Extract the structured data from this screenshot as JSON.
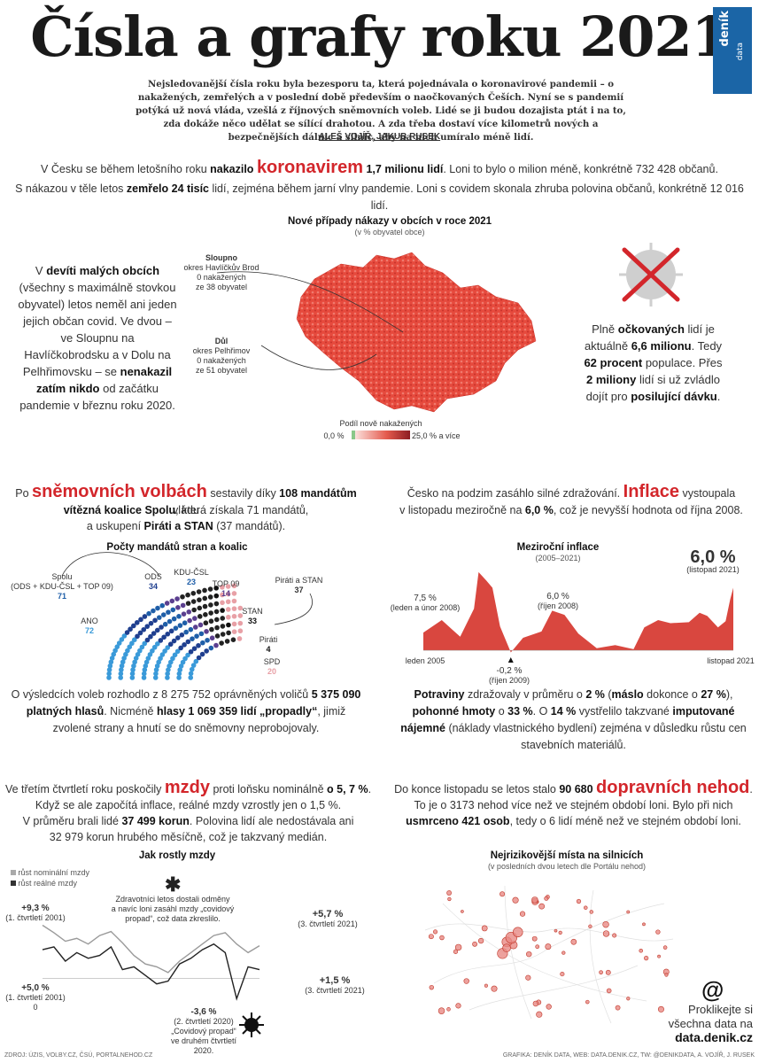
{
  "header": {
    "title": "Čísla a grafy roku 2021",
    "logo_main": "deník",
    "logo_sub": "data",
    "intro": "Nejsledovanější čísla roku byla bezesporu ta, která pojednávala o koronavirové pandemii – o nakažených, zemřelých a v poslední době především o naočkovaných Češích. Nyní se s pandemií potýká už nová vláda, vzešlá z říjnových sněmovních voleb. Lidé se ji budou dozajista ptát i na to, zda dokáže něco udělat se sílící drahotou. A zda třeba dostaví více kilometrů nových a bezpečnějších dálnic a silnic, aby na nich umíralo méně lidí.",
    "authors": "ALEŠ VOJÍŘ, JAKUB RUSEK"
  },
  "covid": {
    "l1a": "V Česku se během letošního roku ",
    "l1b": "nakazilo",
    "l1c": "koronavirem",
    "l1d": "1,7 milionu lidí",
    "l1e": ". Loni to bylo o milion méně, konkrétně 732 428 občanů.",
    "l2a": "S nákazou v těle letos ",
    "l2b": "zemřelo 24 tisíc",
    "l2c": " lidí, zejména během jarní vlny pandemie. Loni s covidem skonala zhruba polovina občanů, konkrétně 12 016 lidí.",
    "map_title": "Nové případy nákazy v obcích v roce 2021",
    "map_sub": "(v % obyvatel obce)",
    "ann1_name": "Sloupno",
    "ann1_text": "okres Havlíčkův Brod\n0 nakažených\nze 38 obyvatel",
    "ann2_name": "Důl",
    "ann2_text": "okres Pelhřimov\n0 nakažených\nze 51 obyvatel",
    "legend_title": "Podíl nově nakažených",
    "legend_min": "0,0 %",
    "legend_max": "25,0 % a více",
    "left_a": "V ",
    "left_b": "devíti malých obcích",
    "left_c": " (všechny s maximálně stovkou obyvatel) letos neměl ani jeden jejich občan covid. Ve dvou – ve Sloupnu na Havlíčkobrodsku a v Dolu na Pelhřimovsku – se ",
    "left_d": "nenakazil zatím nikdo",
    "left_e": " od začátku pandemie v březnu roku 2020.",
    "right_a": "Plně ",
    "right_b": "očkovaných",
    "right_c": " lidí je aktuálně ",
    "right_d": "6,6 milionu",
    "right_e": ". Tedy ",
    "right_f": "62 procent",
    "right_g": " populace. Přes ",
    "right_h": "2 miliony",
    "right_i": " lidí si už zvládlo dojít pro ",
    "right_j": "posilující dávku",
    "right_k": "."
  },
  "elections": {
    "l1a": "Po ",
    "l1b": "sněmovních volbách",
    "l1c": " sestavily díky ",
    "l1d": "108 mandátům",
    "l1e": " vládu",
    "l2a": "vítězná koalice Spolu",
    "l2b": ", která získala 71 mandátů,",
    "l3a": "a uskupení ",
    "l3b": "Piráti a STAN",
    "l3c": " (37 mandátů).",
    "chart_title": "Počty mandátů stran a koalic",
    "spolu_label": "Spolu",
    "spolu_sub": "(ODS + KDU-ČSL + TOP 09)",
    "spolu_value": "71",
    "pirstan_label": "Piráti a STAN",
    "pirstan_value": "37",
    "bottom_a": "O výsledcích voleb rozhodlo z 8 275 752 oprávněných voličů ",
    "bottom_b": "5 375 090 platných hlasů",
    "bottom_c": ". Nicméně ",
    "bottom_d": "hlasy 1 069 359 lidí „propadly“",
    "bottom_e": ", jimiž zvolené strany a hnutí se do sněmovny neprobojovaly."
  },
  "inflation": {
    "l1a": "Česko na podzim zasáhlo silné zdražování. ",
    "l1b": "Inflace",
    "l1c": " vystoupala",
    "l2a": "v listopadu meziročně na ",
    "l2b": "6,0 %",
    "l2c": ", což je nevyšší hodnota od října 2008.",
    "chart_title": "Meziroční inflace",
    "chart_sub": "(2005–2021)",
    "a1_val": "7,5 %",
    "a1_sub": "(leden a únor 2008)",
    "a2_val": "6,0 %",
    "a2_sub": "(říjen 2008)",
    "a3_val": "-0,2 %",
    "a3_sub": "(říjen 2009)",
    "a4_val": "6,0 %",
    "a4_sub": "(listopad 2021)",
    "x_start": "leden 2005",
    "x_end": "listopad 2021",
    "bottom_a": "Potraviny",
    "bottom_b": " zdražovaly v průměru o ",
    "bottom_c": "2 %",
    "bottom_d": " (",
    "bottom_e": "máslo",
    "bottom_f": " dokonce o ",
    "bottom_g": "27 %",
    "bottom_h": "), ",
    "bottom_i": "pohonné hmoty",
    "bottom_j": " o ",
    "bottom_k": "33 %",
    "bottom_l": ". O ",
    "bottom_m": "14 %",
    "bottom_n": " vystřelilo takzvané ",
    "bottom_o": "imputované nájemné",
    "bottom_p": " (náklady vlastnického bydlení) zejména v důsledku růstu cen stavebních materiálů."
  },
  "wages": {
    "l1a": "Ve třetím čtvrtletí roku poskočily ",
    "l1b": "mzdy",
    "l1c": " proti loňsku nominálně ",
    "l1d": "o 5, 7 %",
    "l1e": ".",
    "l2": "Když se ale započítá inflace, reálné mzdy vzrostly jen o 1,5 %.",
    "l3a": "V průměru brali lidé ",
    "l3b": "37 499 korun",
    "l3c": ". Polovina lidí ale nedostávala ani",
    "l4": "32 979 korun hrubého měsíčně, což je takzvaný medián.",
    "chart_title": "Jak rostly mzdy",
    "legend1": "růst nominální mzdy",
    "legend2": "růst reálné mzdy",
    "note_mark": "✱",
    "note": "Zdravotníci letos dostali odměny\na navíc loni zasáhl mzdy „covidový\npropad“, což data zkreslilo.",
    "a1_val": "+9,3 %",
    "a1_sub": "(1. čtvrtletí 2001)",
    "a2_val": "+5,0 %",
    "a2_sub": "(1. čtvrtletí 2001)",
    "zero": "0",
    "a3_val": "+5,7 %",
    "a3_sub": "(3. čtvrtletí 2021)",
    "a4_val": "+1,5 %",
    "a4_sub": "(3. čtvrtletí 2021)",
    "a5_val": "-3,6 %",
    "a5_sub": "(2. čtvrtletí 2020)",
    "a5_note": "„Covidový propad“\nve druhém čtvrtletí 2020."
  },
  "accidents": {
    "l1a": "Do konce listopadu se letos stalo ",
    "l1b": "90 680",
    "l1c": "dopravních nehod",
    "l1d": ".",
    "l2": "To je o 3173 nehod více než ve stejném období loni. Bylo při nich",
    "l3a": "usmrceno 421 osob",
    "l3b": ", tedy o 6 lidí méně než ve stejném období loni.",
    "map_title": "Nejrizikovější místa na silnicích",
    "map_sub": "(v posledních dvou letech dle Portálu nehod)",
    "link_icon": "@",
    "link_text": "Proklikejte si všechna data na",
    "link_url": "data.denik.cz"
  },
  "footer": {
    "left": "ZDROJ: ÚZIS, VOLBY.CZ, ČSÚ, PORTALNEHOD.CZ",
    "right": "GRAFIKA: DENÍK DATA, WEB: DATA.DENIK.CZ, TW: @DENIKDATA, A. VOJÍŘ, J. RUSEK"
  },
  "chart_data": [
    {
      "type": "bar",
      "title": "Počty mandátů stran a koalic",
      "categories": [
        "ANO",
        "ODS",
        "KDU-ČSL",
        "TOP 09",
        "STAN",
        "Piráti",
        "SPD"
      ],
      "values": [
        72,
        34,
        23,
        14,
        33,
        4,
        20
      ],
      "colors": [
        "#3a9ad9",
        "#1f3f8f",
        "#1e5ea8",
        "#5b3f8f",
        "#222222",
        "#111111",
        "#e8a0a6"
      ]
    },
    {
      "type": "area",
      "title": "Meziroční inflace",
      "x_range": [
        "leden 2005",
        "listopad 2021"
      ],
      "ylabel": "",
      "points": [
        {
          "x": "2005-01",
          "y": 1.7
        },
        {
          "x": "2006-01",
          "y": 2.9
        },
        {
          "x": "2007-01",
          "y": 1.3
        },
        {
          "x": "2007-10",
          "y": 4.0
        },
        {
          "x": "2008-01",
          "y": 7.5
        },
        {
          "x": "2008-06",
          "y": 6.7
        },
        {
          "x": "2008-10",
          "y": 6.0
        },
        {
          "x": "2009-03",
          "y": 2.3
        },
        {
          "x": "2009-10",
          "y": -0.2
        },
        {
          "x": "2010-06",
          "y": 1.2
        },
        {
          "x": "2011-06",
          "y": 1.8
        },
        {
          "x": "2012-01",
          "y": 3.8
        },
        {
          "x": "2012-09",
          "y": 3.4
        },
        {
          "x": "2013-06",
          "y": 1.6
        },
        {
          "x": "2014-06",
          "y": 0.2
        },
        {
          "x": "2015-06",
          "y": 0.5
        },
        {
          "x": "2016-06",
          "y": 0.1
        },
        {
          "x": "2017-01",
          "y": 2.2
        },
        {
          "x": "2017-10",
          "y": 2.9
        },
        {
          "x": "2018-06",
          "y": 2.6
        },
        {
          "x": "2019-06",
          "y": 2.7
        },
        {
          "x": "2020-01",
          "y": 3.6
        },
        {
          "x": "2020-06",
          "y": 3.3
        },
        {
          "x": "2021-01",
          "y": 2.2
        },
        {
          "x": "2021-06",
          "y": 2.8
        },
        {
          "x": "2021-09",
          "y": 4.9
        },
        {
          "x": "2021-11",
          "y": 6.0
        }
      ]
    },
    {
      "type": "line",
      "title": "Jak rostly mzdy",
      "series": [
        {
          "name": "růst nominální mzdy",
          "values": [
            9.3,
            8.0,
            6.5,
            7.0,
            6.0,
            7.5,
            8.2,
            6.2,
            4.0,
            2.5,
            2.0,
            1.0,
            3.0,
            4.5,
            6.0,
            7.5,
            8.0,
            6.0,
            4.5,
            5.7
          ]
        },
        {
          "name": "růst reálné mzdy",
          "values": [
            5.0,
            5.5,
            3.0,
            4.5,
            3.5,
            4.0,
            5.5,
            1.5,
            2.0,
            0.5,
            -1.0,
            -0.5,
            2.5,
            3.5,
            5.0,
            6.0,
            4.5,
            -3.6,
            2.0,
            1.5
          ]
        }
      ]
    }
  ]
}
